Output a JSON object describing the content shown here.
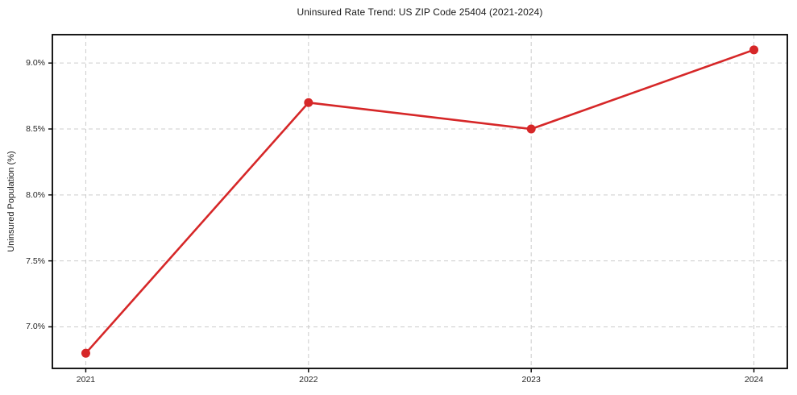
{
  "chart_data": {
    "type": "line",
    "title": "Uninsured Rate Trend: US ZIP Code 25404 (2021-2024)",
    "xlabel": "",
    "ylabel": "Uninsured Population (%)",
    "x": [
      2021,
      2022,
      2023,
      2024
    ],
    "values": [
      6.8,
      8.7,
      8.5,
      9.1
    ],
    "x_tick_labels": [
      "2021",
      "2022",
      "2023",
      "2024"
    ],
    "y_tick_labels": [
      "7.0%",
      "7.5%",
      "8.0%",
      "8.5%",
      "9.0%"
    ],
    "y_tick_values": [
      7.0,
      7.5,
      8.0,
      8.5,
      9.0
    ],
    "xlim": [
      2020.85,
      2024.15
    ],
    "ylim": [
      6.685,
      9.215
    ],
    "grid": "dashed-both-axes",
    "legend": "none",
    "line_color": "#d62728",
    "marker": "circle",
    "marker_radius": 5.5,
    "line_width": 2.6,
    "grid_color": "#cccccc",
    "axis_color": "#000000",
    "background_color": "#ffffff"
  }
}
